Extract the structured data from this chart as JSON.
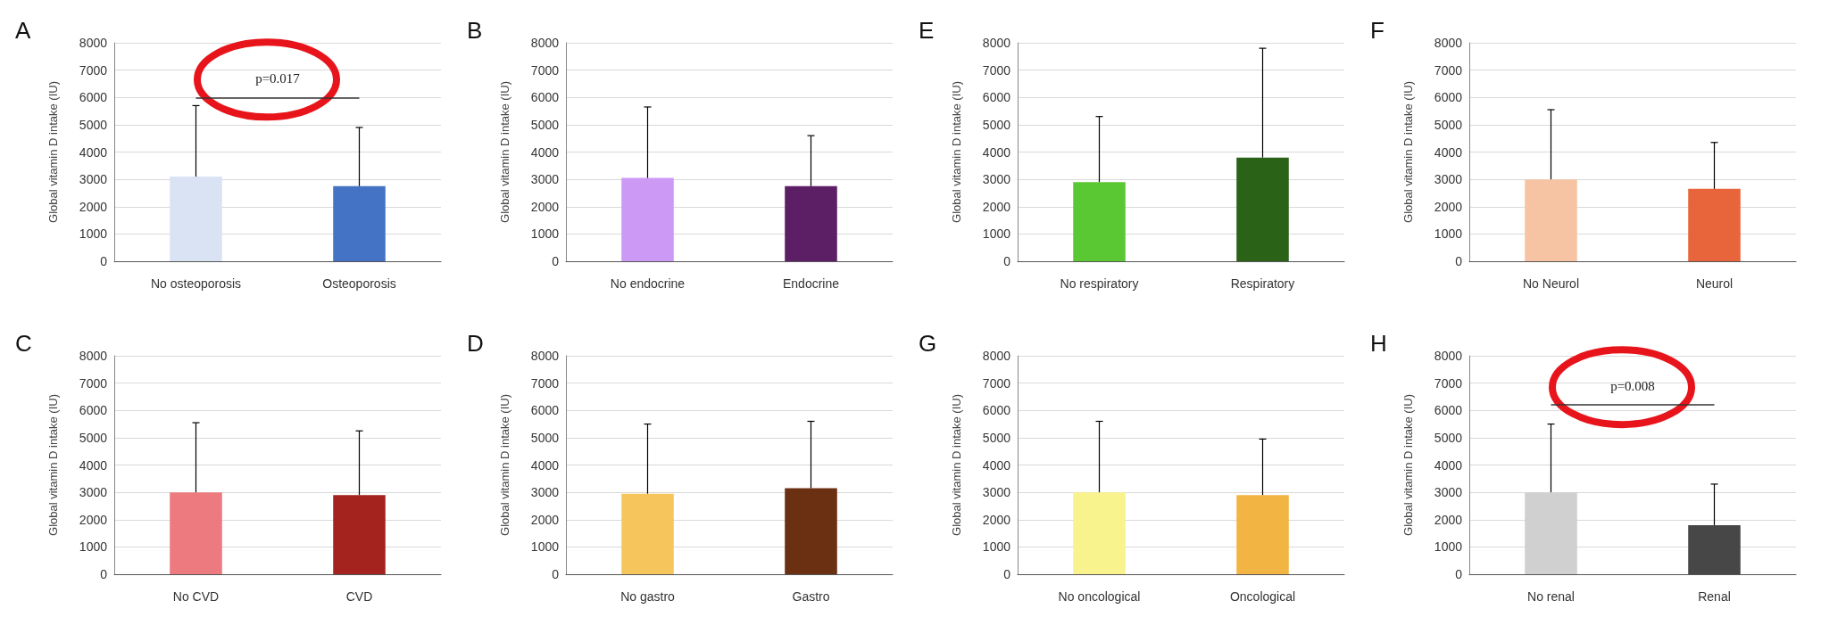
{
  "chart_data": [
    {
      "type": "bar",
      "title": "A",
      "ylabel": "Global vitamin D intake (IU)",
      "categories": [
        "No osteoporosis",
        "Osteoporosis"
      ],
      "values": [
        3100,
        2750
      ],
      "colors": [
        "#dae3f3",
        "#4472c4"
      ],
      "errors": [
        [
          3100,
          5700
        ],
        [
          2750,
          4900
        ]
      ],
      "ylim": [
        0,
        8000
      ],
      "yticks": [
        0,
        1000,
        2000,
        3000,
        4000,
        5000,
        6000,
        7000,
        8000
      ],
      "grid": "y",
      "ref_lines": [
        {
          "axis": "y",
          "value": 6000
        }
      ],
      "annotations": [
        "p=0.017"
      ]
    },
    {
      "type": "bar",
      "title": "B",
      "ylabel": "Global vitamin D intake (IU)",
      "categories": [
        "No endocrine",
        "Endocrine"
      ],
      "values": [
        3050,
        2750
      ],
      "colors": [
        "#cc99f5",
        "#5c1f66"
      ],
      "errors": [
        [
          3050,
          5650
        ],
        [
          2750,
          4600
        ]
      ],
      "ylim": [
        0,
        8000
      ],
      "yticks": [
        0,
        1000,
        2000,
        3000,
        4000,
        5000,
        6000,
        7000,
        8000
      ],
      "grid": "y"
    },
    {
      "type": "bar",
      "title": "E",
      "ylabel": "Global vitamin D intake (IU)",
      "categories": [
        "No respiratory",
        "Respiratory"
      ],
      "values": [
        2900,
        3800
      ],
      "colors": [
        "#5ac832",
        "#2a6318"
      ],
      "errors": [
        [
          2900,
          5300
        ],
        [
          3800,
          7800
        ]
      ],
      "ylim": [
        0,
        8000
      ],
      "yticks": [
        0,
        1000,
        2000,
        3000,
        4000,
        5000,
        6000,
        7000,
        8000
      ],
      "grid": "y"
    },
    {
      "type": "bar",
      "title": "F",
      "ylabel": "Global vitamin D intake (IU)",
      "categories": [
        "No Neurol",
        "Neurol"
      ],
      "values": [
        3000,
        2650
      ],
      "colors": [
        "#f6c4a3",
        "#e8643a"
      ],
      "errors": [
        [
          3000,
          5550
        ],
        [
          2650,
          4350
        ]
      ],
      "ylim": [
        0,
        8000
      ],
      "yticks": [
        0,
        1000,
        2000,
        3000,
        4000,
        5000,
        6000,
        7000,
        8000
      ],
      "grid": "y"
    },
    {
      "type": "bar",
      "title": "C",
      "ylabel": "Global vitamin D intake (IU)",
      "categories": [
        "No CVD",
        "CVD"
      ],
      "values": [
        3000,
        2900
      ],
      "colors": [
        "#ec7a7e",
        "#a4231e"
      ],
      "errors": [
        [
          3000,
          5550
        ],
        [
          2900,
          5250
        ]
      ],
      "ylim": [
        0,
        8000
      ],
      "yticks": [
        0,
        1000,
        2000,
        3000,
        4000,
        5000,
        6000,
        7000,
        8000
      ],
      "grid": "y"
    },
    {
      "type": "bar",
      "title": "D",
      "ylabel": "Global vitamin D intake (IU)",
      "categories": [
        "No gastro",
        "Gastro"
      ],
      "values": [
        2950,
        3150
      ],
      "colors": [
        "#f6c65c",
        "#6b2f12"
      ],
      "errors": [
        [
          2950,
          5500
        ],
        [
          3150,
          5600
        ]
      ],
      "ylim": [
        0,
        8000
      ],
      "yticks": [
        0,
        1000,
        2000,
        3000,
        4000,
        5000,
        6000,
        7000,
        8000
      ],
      "grid": "y"
    },
    {
      "type": "bar",
      "title": "G",
      "ylabel": "Global vitamin D intake (IU)",
      "categories": [
        "No oncological",
        "Oncological"
      ],
      "values": [
        3000,
        2900
      ],
      "colors": [
        "#f8f38c",
        "#f2b544"
      ],
      "errors": [
        [
          3000,
          5600
        ],
        [
          2900,
          4950
        ]
      ],
      "ylim": [
        0,
        8000
      ],
      "yticks": [
        0,
        1000,
        2000,
        3000,
        4000,
        5000,
        6000,
        7000,
        8000
      ],
      "grid": "y"
    },
    {
      "type": "bar",
      "title": "H",
      "ylabel": "Global vitamin D intake (IU)",
      "categories": [
        "No renal",
        "Renal"
      ],
      "values": [
        3000,
        1800
      ],
      "colors": [
        "#d0d0d0",
        "#474747"
      ],
      "errors": [
        [
          3000,
          5500
        ],
        [
          1800,
          3300
        ]
      ],
      "ylim": [
        0,
        8000
      ],
      "yticks": [
        0,
        1000,
        2000,
        3000,
        4000,
        5000,
        6000,
        7000,
        8000
      ],
      "grid": "y",
      "ref_lines": [
        {
          "axis": "y",
          "value": 6200
        }
      ],
      "annotations": [
        "p=0.008"
      ]
    }
  ]
}
